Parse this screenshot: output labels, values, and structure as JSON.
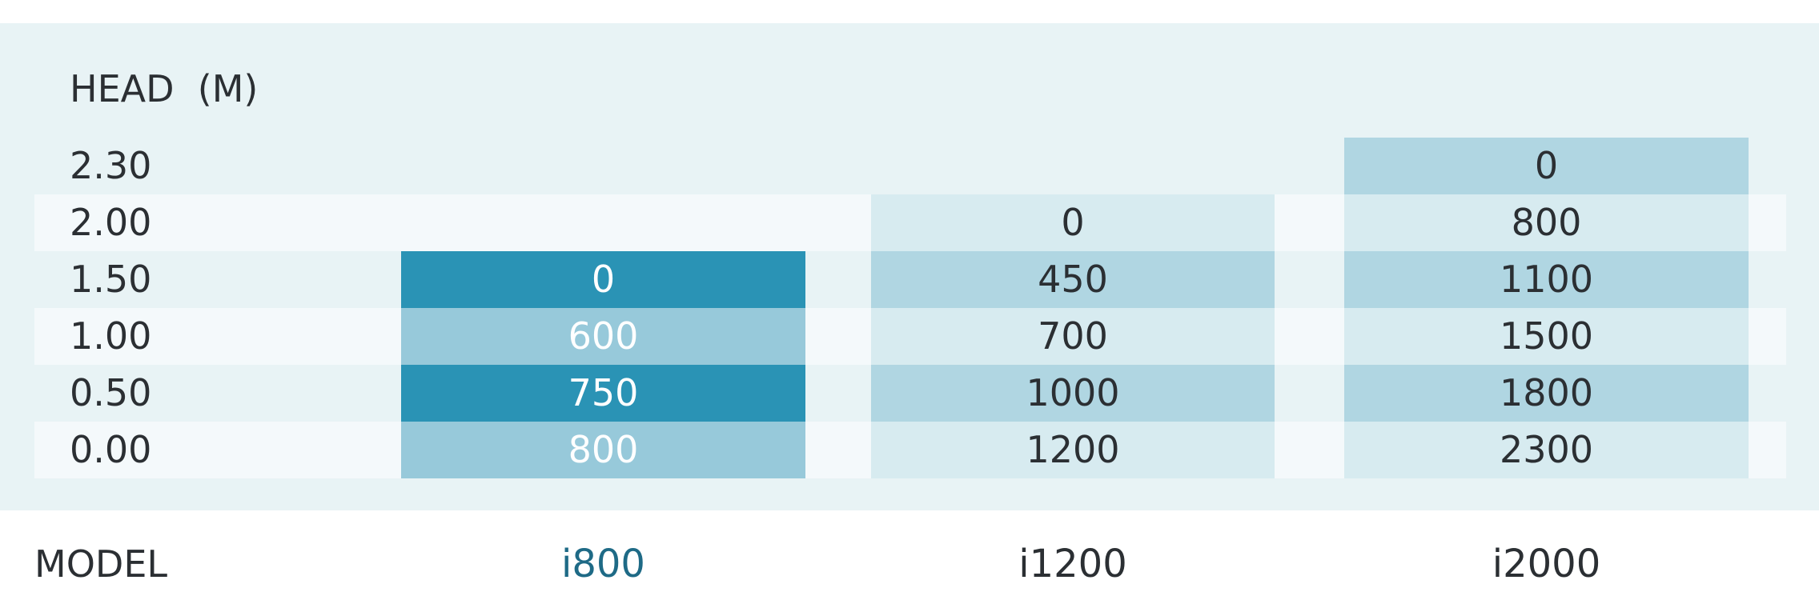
{
  "table": {
    "header": "HEAD  (M)",
    "heads": [
      "2.30",
      "2.00",
      "1.50",
      "1.00",
      "0.50",
      "0.00"
    ],
    "columns": [
      {
        "model": "i800",
        "cells": [
          null,
          null,
          "0",
          "600",
          "750",
          "800"
        ]
      },
      {
        "model": "i1200",
        "cells": [
          null,
          "0",
          "450",
          "700",
          "1000",
          "1200"
        ]
      },
      {
        "model": "i2000",
        "cells": [
          "0",
          "800",
          "1100",
          "1500",
          "1800",
          "2300"
        ]
      }
    ],
    "footer": "MODEL"
  }
}
